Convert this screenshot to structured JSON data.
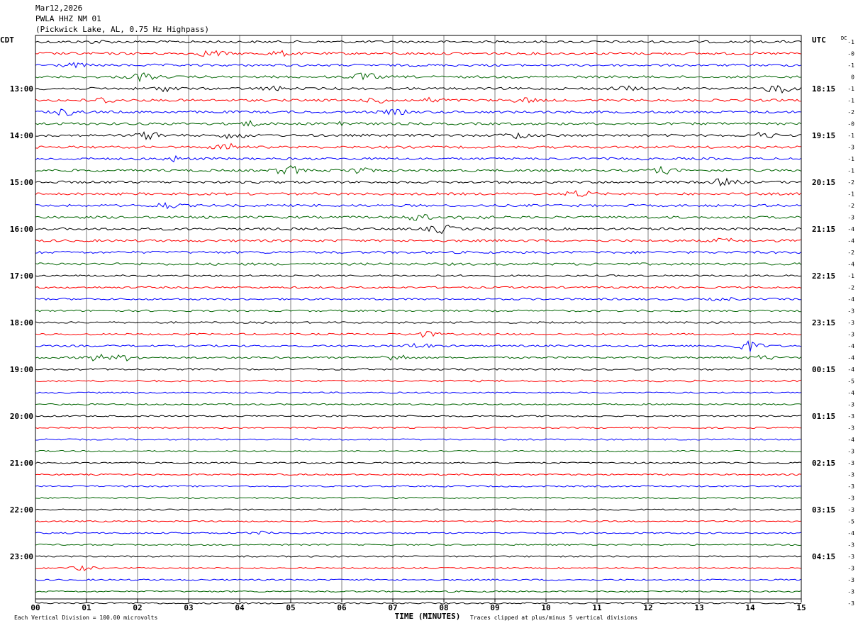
{
  "header": {
    "date": "Mar12,2026",
    "station": "PWLA HHZ NM 01",
    "location": "(Pickwick Lake, AL, 0.75 Hz Highpass)"
  },
  "left_axis_label": "CDT",
  "right_axis_label": "UTC",
  "dc_label": "DC",
  "footer": {
    "scale_note": "Each Vertical Division =  100.00 microvolts",
    "clip_note": "Traces clipped at plus/minus 5 vertical divisions"
  },
  "colors": {
    "trace_cycle": [
      "#000000",
      "#ff0000",
      "#0000ff",
      "#006400"
    ],
    "grid": "#808080"
  },
  "chart_data": {
    "type": "line",
    "title": "PWLA HHZ NM 01",
    "xlabel": "TIME (MINUTES)",
    "xlim": [
      0,
      15
    ],
    "x_ticks": [
      "00",
      "01",
      "02",
      "03",
      "04",
      "05",
      "06",
      "07",
      "08",
      "09",
      "10",
      "11",
      "12",
      "13",
      "14",
      "15"
    ],
    "left_time_labels": [
      "13:00",
      "14:00",
      "15:00",
      "16:00",
      "17:00",
      "18:00",
      "19:00",
      "20:00",
      "21:00",
      "22:00",
      "23:00"
    ],
    "right_time_labels": [
      "18:15",
      "19:15",
      "20:15",
      "21:15",
      "22:15",
      "23:15",
      "00:15",
      "01:15",
      "02:15",
      "03:15",
      "04:15"
    ],
    "first_labeled_trace": 4,
    "traces_per_label": 4,
    "dc_offsets": [
      "-1",
      "-0",
      "-1",
      "0",
      "-1",
      "-1",
      "-2",
      "-0",
      "-1",
      "-3",
      "-1",
      "-1",
      "-2",
      "-1",
      "-2",
      "-3",
      "-4",
      "-4",
      "-2",
      "-4",
      "-1",
      "-2",
      "-4",
      "-3",
      "-3",
      "-3",
      "-4",
      "-4",
      "-4",
      "-5",
      "-4",
      "-3",
      "-3",
      "-3",
      "-4",
      "-3",
      "-3",
      "-3",
      "-3",
      "-3",
      "-3",
      "-5",
      "-4",
      "-3",
      "-3",
      "-3",
      "-3",
      "-3",
      "-3"
    ],
    "trace_count": 49,
    "amplitude_per_division_uV": 100.0,
    "clip_divisions": 5
  }
}
